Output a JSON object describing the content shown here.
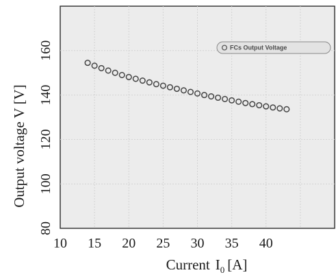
{
  "chart_data": {
    "type": "scatter",
    "xlabel": "Current",
    "xlabel_symbol": "I",
    "xlabel_subscript": "0",
    "xlabel_unit": "[A]",
    "ylabel": "Output voltage  V [V]",
    "xlim": [
      10,
      50
    ],
    "ylim": [
      80,
      180
    ],
    "xticks": [
      10,
      15,
      20,
      25,
      30,
      35,
      40
    ],
    "yticks": [
      80,
      100,
      120,
      140,
      160
    ],
    "grid": true,
    "legend_position": "top-right",
    "series": [
      {
        "name": "FCs Output Voltage",
        "marker": "open-circle",
        "color": "#444444",
        "x": [
          14.0,
          15.0,
          16.0,
          17.0,
          18.0,
          19.0,
          20.0,
          21.0,
          22.0,
          23.0,
          24.0,
          25.0,
          26.0,
          27.0,
          28.0,
          29.0,
          30.0,
          31.0,
          32.0,
          33.0,
          34.0,
          35.0,
          36.0,
          37.0,
          38.0,
          39.0,
          40.0,
          41.0,
          42.0,
          43.0
        ],
        "y": [
          154.5,
          153.2,
          152.1,
          151.0,
          150.0,
          149.0,
          148.1,
          147.3,
          146.5,
          145.7,
          144.9,
          144.2,
          143.5,
          142.8,
          142.1,
          141.4,
          140.7,
          140.0,
          139.4,
          138.8,
          138.2,
          137.6,
          137.0,
          136.4,
          135.9,
          135.4,
          134.9,
          134.4,
          134.0,
          133.6
        ]
      }
    ]
  }
}
